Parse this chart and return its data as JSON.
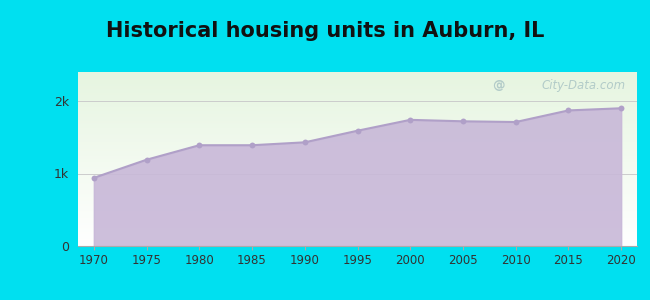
{
  "title": "Historical housing units in Auburn, IL",
  "title_fontsize": 15,
  "title_fontweight": "bold",
  "background_outer": "#00e0f0",
  "background_inner_top": "#e6f5e0",
  "background_inner_bottom": "#ffffff",
  "fill_color": "#c8b8d8",
  "fill_alpha": 0.9,
  "line_color": "#b0a0c8",
  "marker_color": "#b0a0c8",
  "marker_size": 18,
  "years": [
    1970,
    1975,
    1980,
    1985,
    1990,
    1995,
    2000,
    2005,
    2010,
    2015,
    2020
  ],
  "values": [
    940,
    1190,
    1390,
    1390,
    1430,
    1590,
    1740,
    1720,
    1710,
    1870,
    1900
  ],
  "ytick_labels": [
    "0",
    "1k",
    "2k"
  ],
  "ytick_values": [
    0,
    1000,
    2000
  ],
  "ylim": [
    0,
    2400
  ],
  "xlim": [
    1968.5,
    2021.5
  ],
  "watermark_text": "City-Data.com",
  "watermark_color": "#90b0b8",
  "watermark_alpha": 0.6,
  "grid_color": "#cccccc",
  "grid_linewidth": 0.7
}
